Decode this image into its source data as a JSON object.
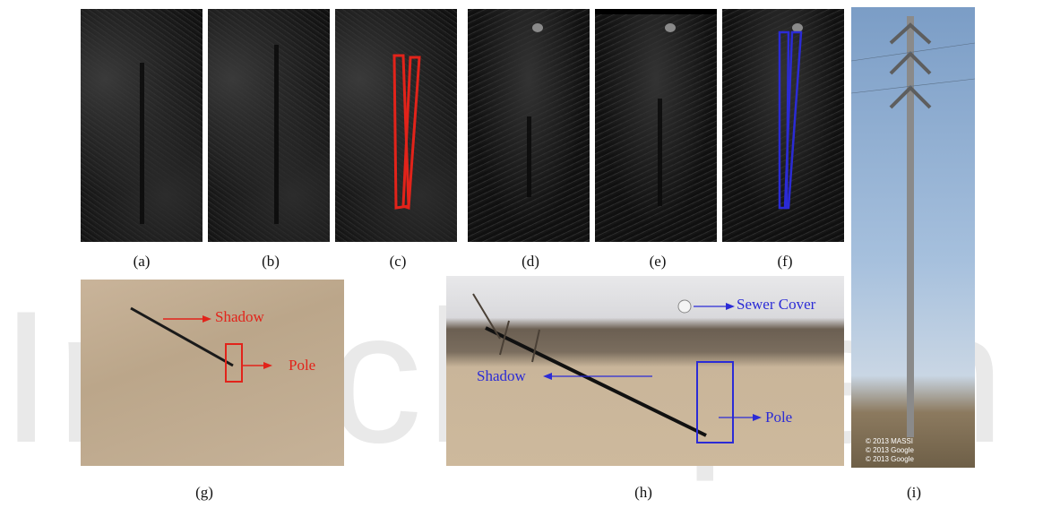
{
  "panels": {
    "a": {
      "caption": "(a)"
    },
    "b": {
      "caption": "(b)"
    },
    "c": {
      "caption": "(c)"
    },
    "d": {
      "caption": "(d)"
    },
    "e": {
      "caption": "(e)"
    },
    "f": {
      "caption": "(f)"
    },
    "g": {
      "caption": "(g)",
      "shadow_label": "Shadow",
      "pole_label": "Pole"
    },
    "h": {
      "caption": "(h)",
      "shadow_label": "Shadow",
      "pole_label": "Pole",
      "sewer_label": "Sewer Cover"
    },
    "i": {
      "caption": "(i)",
      "copyright_lines": [
        "© 2013 MASSI",
        "© 2013 Google",
        "© 2013 Google"
      ]
    }
  },
  "colors": {
    "red_box": "#e2231a",
    "blue_box": "#2b2bd6",
    "watermark": "#e9e9e9"
  }
}
